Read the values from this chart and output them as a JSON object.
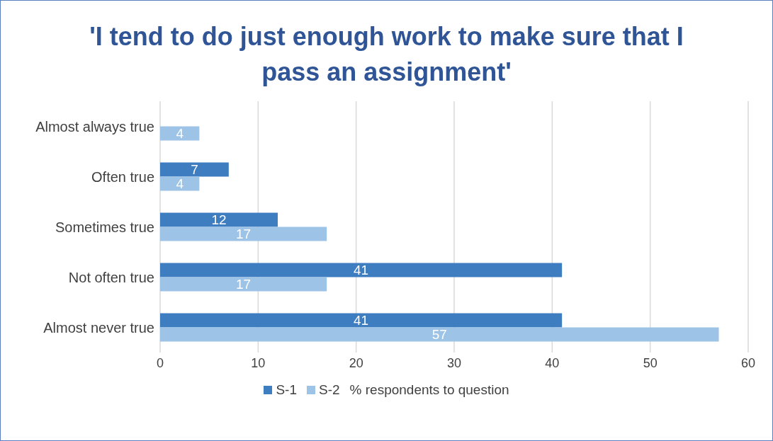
{
  "chart_data": {
    "type": "bar",
    "orientation": "horizontal",
    "title": "'I tend to do just enough work to make sure that I pass an assignment'",
    "xlabel": "% respondents to question",
    "categories": [
      "Almost always true",
      "Often true",
      "Sometimes true",
      "Not often true",
      "Almost never true"
    ],
    "series": [
      {
        "name": "S-1",
        "color": "#3f7dc1",
        "values": [
          null,
          7,
          12,
          41,
          41
        ]
      },
      {
        "name": "S-2",
        "color": "#9dc3e6",
        "values": [
          4,
          4,
          17,
          17,
          57
        ]
      }
    ],
    "xlim": [
      0,
      60
    ],
    "xticks": [
      0,
      10,
      20,
      30,
      40,
      50,
      60
    ],
    "grid": "x",
    "legend": "bottom",
    "data_labels": true
  }
}
